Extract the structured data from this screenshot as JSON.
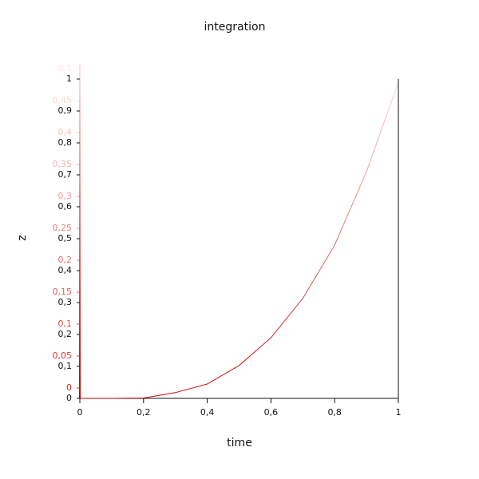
{
  "chart_data": {
    "type": "line",
    "title": "integration",
    "x_label": "time",
    "y_label": "z",
    "x": [
      0,
      0.1,
      0.2,
      0.3,
      0.4,
      0.5,
      0.6,
      0.7,
      0.8,
      0.9,
      1
    ],
    "series": [
      {
        "color": "#cc0000",
        "values": [
          0,
          0,
          0.001,
          0.018,
          0.045,
          0.103,
          0.19,
          0.313,
          0.48,
          0.71,
          0.99
        ]
      }
    ],
    "xlim": [
      0,
      1
    ],
    "xticks": [
      0,
      {
        "value": 0.2,
        "label": "0,2"
      },
      {
        "value": 0.4,
        "label": "0,4"
      },
      {
        "value": 0.6,
        "label": "0,6"
      },
      {
        "value": 0.8,
        "label": "0,8"
      },
      1
    ],
    "ylim": [
      0,
      1
    ],
    "yticks": [
      0,
      {
        "value": 0.1,
        "label": "0,1"
      },
      {
        "value": 0.2,
        "label": "0,2"
      },
      {
        "value": 0.3,
        "label": "0,3"
      },
      {
        "value": 0.4,
        "label": "0,4"
      },
      {
        "value": 0.5,
        "label": "0,5"
      },
      {
        "value": 0.6,
        "label": "0,6"
      },
      {
        "value": 0.7,
        "label": "0,7"
      },
      {
        "value": 0.8,
        "label": "0,8"
      },
      {
        "value": 0.9,
        "label": "0,9"
      },
      1
    ],
    "y2lim": [
      0,
      0.5
    ],
    "y2ticks": [
      0,
      {
        "value": 0.05,
        "label": "0,05"
      },
      {
        "value": 0.1,
        "label": "0,1"
      },
      {
        "value": 0.15,
        "label": "0,15"
      },
      {
        "value": 0.2,
        "label": "0,2"
      },
      {
        "value": 0.25,
        "label": "0,25"
      },
      {
        "value": 0.3,
        "label": "0,3"
      },
      {
        "value": 0.35,
        "label": "0,35"
      },
      {
        "value": 0.4,
        "label": "0,4"
      },
      {
        "value": 0.45,
        "label": "0,45"
      },
      {
        "value": 0.5,
        "label": "0,5"
      }
    ],
    "y2_color": "#e02020"
  }
}
